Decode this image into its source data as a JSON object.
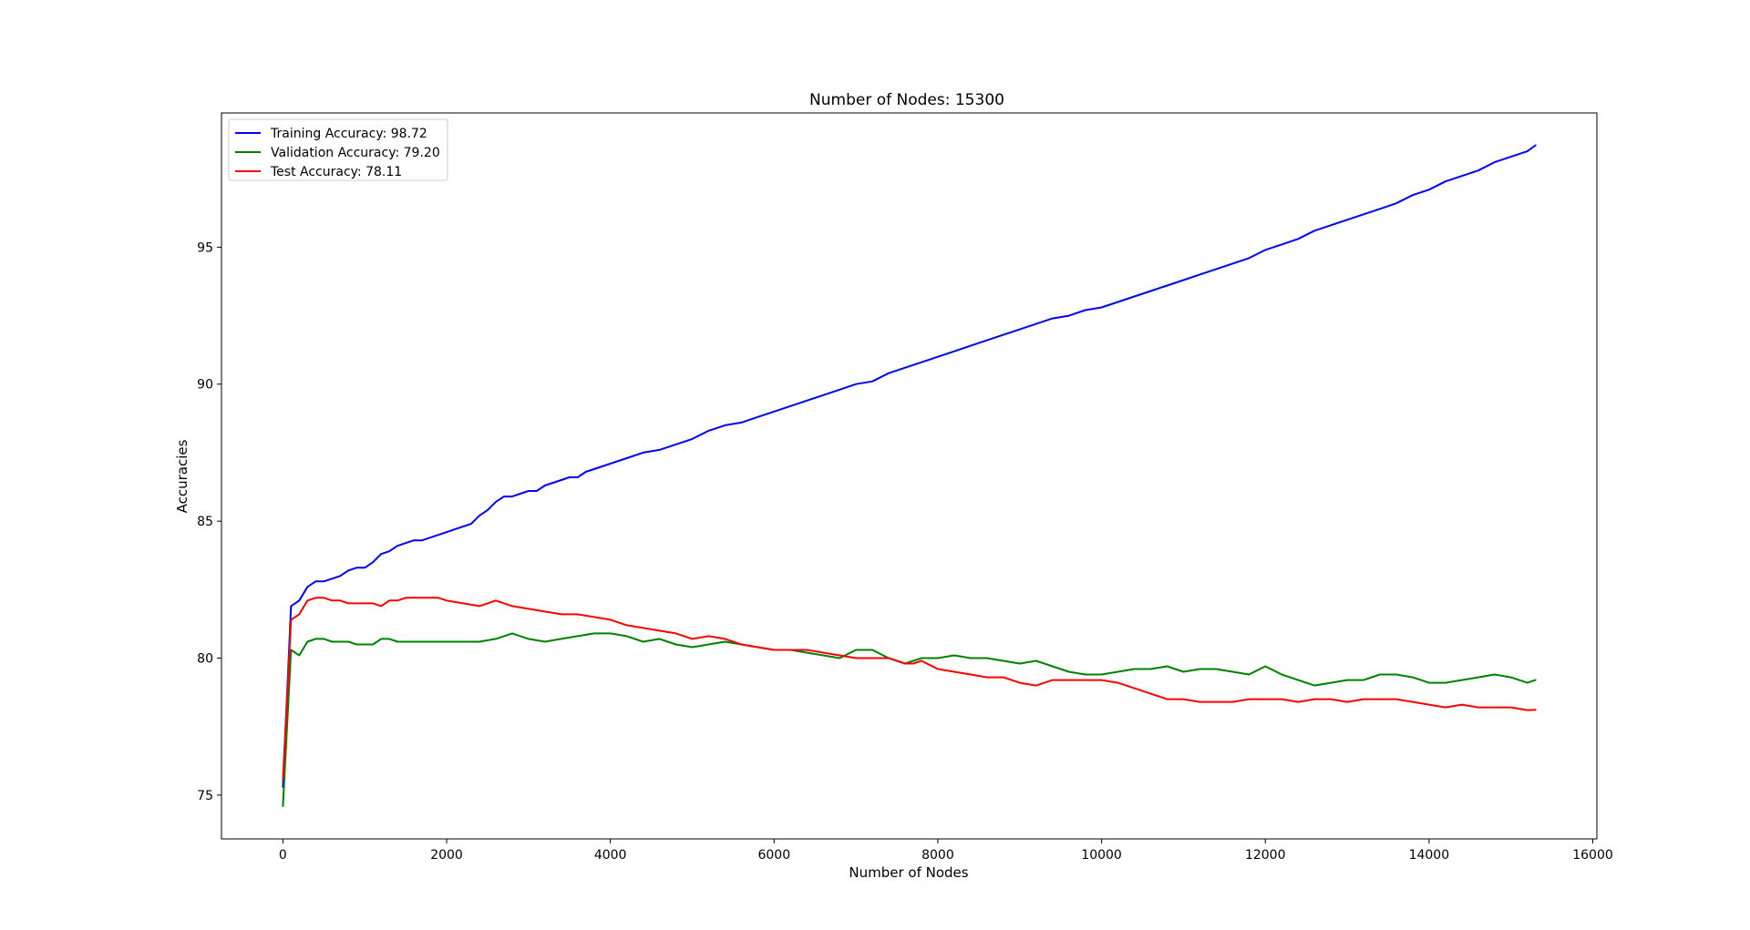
{
  "chart_data": {
    "type": "line",
    "title": "Number of Nodes: 15300",
    "xlabel": "Number of Nodes",
    "ylabel": "Accuracies",
    "xlim": [
      -750,
      16050
    ],
    "ylim": [
      73.4,
      99.9
    ],
    "xticks": [
      0,
      2000,
      4000,
      6000,
      8000,
      10000,
      12000,
      14000,
      16000
    ],
    "yticks": [
      75,
      80,
      85,
      90,
      95
    ],
    "grid": false,
    "legend_position": "top-left",
    "series": [
      {
        "name": "Training Accuracy: 98.72",
        "color": "#0000ff",
        "x": [
          0,
          100,
          200,
          300,
          400,
          500,
          600,
          700,
          800,
          900,
          1000,
          1100,
          1200,
          1300,
          1400,
          1500,
          1600,
          1700,
          1800,
          1900,
          2000,
          2100,
          2200,
          2300,
          2400,
          2500,
          2600,
          2700,
          2800,
          2900,
          3000,
          3100,
          3200,
          3300,
          3400,
          3500,
          3600,
          3700,
          3800,
          3900,
          4000,
          4200,
          4400,
          4600,
          4800,
          5000,
          5200,
          5400,
          5600,
          5800,
          6000,
          6200,
          6400,
          6600,
          6800,
          7000,
          7200,
          7400,
          7600,
          7800,
          8000,
          8200,
          8400,
          8600,
          8800,
          9000,
          9200,
          9400,
          9600,
          9800,
          10000,
          10200,
          10400,
          10600,
          10800,
          11000,
          11200,
          11400,
          11600,
          11800,
          12000,
          12200,
          12400,
          12600,
          12800,
          13000,
          13200,
          13400,
          13600,
          13800,
          14000,
          14200,
          14400,
          14600,
          14800,
          15000,
          15200,
          15300
        ],
        "y": [
          75.3,
          81.9,
          82.1,
          82.6,
          82.8,
          82.8,
          82.9,
          83.0,
          83.2,
          83.3,
          83.3,
          83.5,
          83.8,
          83.9,
          84.1,
          84.2,
          84.3,
          84.3,
          84.4,
          84.5,
          84.6,
          84.7,
          84.8,
          84.9,
          85.2,
          85.4,
          85.7,
          85.9,
          85.9,
          86.0,
          86.1,
          86.1,
          86.3,
          86.4,
          86.5,
          86.6,
          86.6,
          86.8,
          86.9,
          87.0,
          87.1,
          87.3,
          87.5,
          87.6,
          87.8,
          88.0,
          88.3,
          88.5,
          88.6,
          88.8,
          89.0,
          89.2,
          89.4,
          89.6,
          89.8,
          90.0,
          90.1,
          90.4,
          90.6,
          90.8,
          91.0,
          91.2,
          91.4,
          91.6,
          91.8,
          92.0,
          92.2,
          92.4,
          92.5,
          92.7,
          92.8,
          93.0,
          93.2,
          93.4,
          93.6,
          93.8,
          94.0,
          94.2,
          94.4,
          94.6,
          94.9,
          95.1,
          95.3,
          95.6,
          95.8,
          96.0,
          96.2,
          96.4,
          96.6,
          96.9,
          97.1,
          97.4,
          97.6,
          97.8,
          98.1,
          98.3,
          98.5,
          98.72
        ]
      },
      {
        "name": "Validation Accuracy: 79.20",
        "color": "#008000",
        "x": [
          0,
          100,
          200,
          300,
          400,
          500,
          600,
          700,
          800,
          900,
          1000,
          1100,
          1200,
          1300,
          1400,
          1500,
          1600,
          1700,
          1800,
          1900,
          2000,
          2200,
          2400,
          2600,
          2800,
          3000,
          3200,
          3400,
          3600,
          3800,
          4000,
          4200,
          4400,
          4600,
          4800,
          5000,
          5200,
          5400,
          5600,
          5800,
          6000,
          6200,
          6400,
          6600,
          6800,
          7000,
          7200,
          7400,
          7600,
          7800,
          8000,
          8200,
          8400,
          8600,
          8800,
          9000,
          9200,
          9400,
          9600,
          9800,
          10000,
          10200,
          10400,
          10600,
          10800,
          11000,
          11200,
          11400,
          11600,
          11800,
          12000,
          12200,
          12400,
          12600,
          12800,
          13000,
          13200,
          13400,
          13600,
          13800,
          14000,
          14200,
          14400,
          14600,
          14800,
          15000,
          15200,
          15300
        ],
        "y": [
          74.6,
          80.3,
          80.1,
          80.6,
          80.7,
          80.7,
          80.6,
          80.6,
          80.6,
          80.5,
          80.5,
          80.5,
          80.7,
          80.7,
          80.6,
          80.6,
          80.6,
          80.6,
          80.6,
          80.6,
          80.6,
          80.6,
          80.6,
          80.7,
          80.9,
          80.7,
          80.6,
          80.7,
          80.8,
          80.9,
          80.9,
          80.8,
          80.6,
          80.7,
          80.5,
          80.4,
          80.5,
          80.6,
          80.5,
          80.4,
          80.3,
          80.3,
          80.2,
          80.1,
          80.0,
          80.3,
          80.3,
          80.0,
          79.8,
          80.0,
          80.0,
          80.1,
          80.0,
          80.0,
          79.9,
          79.8,
          79.9,
          79.7,
          79.5,
          79.4,
          79.4,
          79.5,
          79.6,
          79.6,
          79.7,
          79.5,
          79.6,
          79.6,
          79.5,
          79.4,
          79.7,
          79.4,
          79.2,
          79.0,
          79.1,
          79.2,
          79.2,
          79.4,
          79.4,
          79.3,
          79.1,
          79.1,
          79.2,
          79.3,
          79.4,
          79.3,
          79.1,
          79.2
        ]
      },
      {
        "name": "Test Accuracy: 78.11",
        "color": "#ff0000",
        "x": [
          0,
          100,
          200,
          300,
          400,
          500,
          600,
          700,
          800,
          900,
          1000,
          1100,
          1200,
          1300,
          1400,
          1500,
          1600,
          1700,
          1800,
          1900,
          2000,
          2200,
          2400,
          2600,
          2800,
          3000,
          3200,
          3400,
          3600,
          3800,
          4000,
          4200,
          4400,
          4600,
          4800,
          5000,
          5200,
          5400,
          5600,
          5800,
          6000,
          6200,
          6400,
          6600,
          6800,
          7000,
          7200,
          7400,
          7600,
          7700,
          7800,
          8000,
          8200,
          8400,
          8600,
          8800,
          9000,
          9200,
          9400,
          9600,
          9800,
          10000,
          10200,
          10400,
          10600,
          10800,
          11000,
          11200,
          11400,
          11600,
          11800,
          12000,
          12200,
          12400,
          12600,
          12800,
          13000,
          13200,
          13400,
          13600,
          13800,
          14000,
          14200,
          14400,
          14600,
          14800,
          15000,
          15200,
          15300
        ],
        "y": [
          75.6,
          81.4,
          81.6,
          82.1,
          82.2,
          82.2,
          82.1,
          82.1,
          82.0,
          82.0,
          82.0,
          82.0,
          81.9,
          82.1,
          82.1,
          82.2,
          82.2,
          82.2,
          82.2,
          82.2,
          82.1,
          82.0,
          81.9,
          82.1,
          81.9,
          81.8,
          81.7,
          81.6,
          81.6,
          81.5,
          81.4,
          81.2,
          81.1,
          81.0,
          80.9,
          80.7,
          80.8,
          80.7,
          80.5,
          80.4,
          80.3,
          80.3,
          80.3,
          80.2,
          80.1,
          80.0,
          80.0,
          80.0,
          79.8,
          79.8,
          79.9,
          79.6,
          79.5,
          79.4,
          79.3,
          79.3,
          79.1,
          79.0,
          79.2,
          79.2,
          79.2,
          79.2,
          79.1,
          78.9,
          78.7,
          78.5,
          78.5,
          78.4,
          78.4,
          78.4,
          78.5,
          78.5,
          78.5,
          78.4,
          78.5,
          78.5,
          78.4,
          78.5,
          78.5,
          78.5,
          78.4,
          78.3,
          78.2,
          78.3,
          78.2,
          78.2,
          78.2,
          78.1,
          78.11
        ]
      }
    ]
  }
}
